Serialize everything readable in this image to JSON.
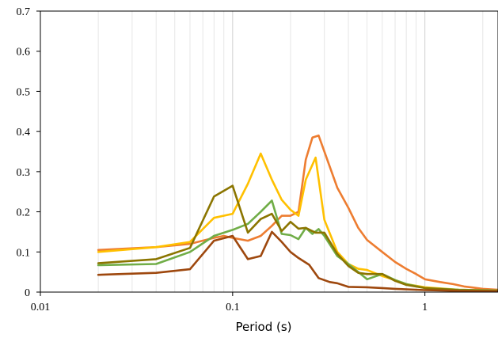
{
  "chart_data": {
    "type": "line",
    "title": "",
    "xlabel": "Period (s)",
    "ylabel": "",
    "x_scale": "log",
    "xlim": [
      0.01,
      2.4
    ],
    "ylim": [
      0,
      0.7
    ],
    "x_ticks": [
      0.01,
      0.1,
      1
    ],
    "x_tick_labels": [
      "0.01",
      "0.1",
      "1"
    ],
    "y_ticks": [
      0,
      0.1,
      0.2,
      0.3,
      0.4,
      0.5,
      0.6,
      0.7
    ],
    "y_tick_labels": [
      "0",
      "0.1",
      "0.2",
      "0.3",
      "0.4",
      "0.5",
      "0.6",
      "0.7"
    ],
    "grid": "vertical log grid",
    "legend": "none",
    "series": [
      {
        "color": "#ED7D31",
        "points": [
          [
            0.02,
            0.105
          ],
          [
            0.04,
            0.112
          ],
          [
            0.06,
            0.12
          ],
          [
            0.08,
            0.135
          ],
          [
            0.09,
            0.14
          ],
          [
            0.1,
            0.135
          ],
          [
            0.12,
            0.128
          ],
          [
            0.14,
            0.14
          ],
          [
            0.16,
            0.165
          ],
          [
            0.18,
            0.19
          ],
          [
            0.2,
            0.19
          ],
          [
            0.22,
            0.2
          ],
          [
            0.24,
            0.33
          ],
          [
            0.26,
            0.385
          ],
          [
            0.28,
            0.39
          ],
          [
            0.3,
            0.35
          ],
          [
            0.35,
            0.26
          ],
          [
            0.4,
            0.21
          ],
          [
            0.45,
            0.16
          ],
          [
            0.5,
            0.13
          ],
          [
            0.6,
            0.1
          ],
          [
            0.7,
            0.075
          ],
          [
            0.8,
            0.058
          ],
          [
            0.9,
            0.045
          ],
          [
            1.0,
            0.032
          ],
          [
            1.2,
            0.025
          ],
          [
            1.4,
            0.02
          ],
          [
            1.6,
            0.014
          ],
          [
            1.8,
            0.011
          ],
          [
            2.0,
            0.008
          ],
          [
            2.4,
            0.006
          ]
        ]
      },
      {
        "color": "#FFC000",
        "points": [
          [
            0.02,
            0.1
          ],
          [
            0.04,
            0.112
          ],
          [
            0.06,
            0.125
          ],
          [
            0.08,
            0.185
          ],
          [
            0.1,
            0.195
          ],
          [
            0.12,
            0.27
          ],
          [
            0.14,
            0.345
          ],
          [
            0.16,
            0.28
          ],
          [
            0.18,
            0.23
          ],
          [
            0.2,
            0.205
          ],
          [
            0.22,
            0.19
          ],
          [
            0.24,
            0.28
          ],
          [
            0.27,
            0.335
          ],
          [
            0.3,
            0.18
          ],
          [
            0.35,
            0.1
          ],
          [
            0.4,
            0.07
          ],
          [
            0.45,
            0.058
          ],
          [
            0.5,
            0.055
          ],
          [
            0.6,
            0.04
          ],
          [
            0.7,
            0.03
          ],
          [
            0.8,
            0.02
          ],
          [
            1.0,
            0.012
          ],
          [
            1.5,
            0.006
          ],
          [
            2.4,
            0.004
          ]
        ]
      },
      {
        "color": "#70AD47",
        "points": [
          [
            0.02,
            0.067
          ],
          [
            0.04,
            0.07
          ],
          [
            0.06,
            0.1
          ],
          [
            0.08,
            0.14
          ],
          [
            0.1,
            0.155
          ],
          [
            0.12,
            0.17
          ],
          [
            0.14,
            0.2
          ],
          [
            0.16,
            0.228
          ],
          [
            0.18,
            0.145
          ],
          [
            0.2,
            0.142
          ],
          [
            0.22,
            0.132
          ],
          [
            0.24,
            0.16
          ],
          [
            0.26,
            0.145
          ],
          [
            0.28,
            0.157
          ],
          [
            0.3,
            0.14
          ],
          [
            0.35,
            0.09
          ],
          [
            0.4,
            0.07
          ],
          [
            0.45,
            0.05
          ],
          [
            0.5,
            0.032
          ],
          [
            0.6,
            0.045
          ],
          [
            0.7,
            0.03
          ],
          [
            0.8,
            0.02
          ],
          [
            1.0,
            0.01
          ],
          [
            1.5,
            0.006
          ],
          [
            2.4,
            0.004
          ]
        ]
      },
      {
        "color": "#8B7500",
        "points": [
          [
            0.02,
            0.072
          ],
          [
            0.04,
            0.082
          ],
          [
            0.06,
            0.11
          ],
          [
            0.08,
            0.238
          ],
          [
            0.1,
            0.265
          ],
          [
            0.12,
            0.148
          ],
          [
            0.14,
            0.182
          ],
          [
            0.16,
            0.195
          ],
          [
            0.18,
            0.152
          ],
          [
            0.2,
            0.175
          ],
          [
            0.22,
            0.158
          ],
          [
            0.24,
            0.16
          ],
          [
            0.27,
            0.148
          ],
          [
            0.3,
            0.148
          ],
          [
            0.35,
            0.095
          ],
          [
            0.4,
            0.065
          ],
          [
            0.45,
            0.048
          ],
          [
            0.5,
            0.045
          ],
          [
            0.6,
            0.045
          ],
          [
            0.7,
            0.028
          ],
          [
            0.8,
            0.018
          ],
          [
            1.0,
            0.01
          ],
          [
            1.5,
            0.005
          ],
          [
            2.4,
            0.003
          ]
        ]
      },
      {
        "color": "#9E480E",
        "points": [
          [
            0.02,
            0.043
          ],
          [
            0.04,
            0.048
          ],
          [
            0.06,
            0.057
          ],
          [
            0.08,
            0.128
          ],
          [
            0.1,
            0.14
          ],
          [
            0.12,
            0.082
          ],
          [
            0.14,
            0.09
          ],
          [
            0.16,
            0.15
          ],
          [
            0.18,
            0.125
          ],
          [
            0.2,
            0.1
          ],
          [
            0.22,
            0.085
          ],
          [
            0.25,
            0.068
          ],
          [
            0.28,
            0.035
          ],
          [
            0.32,
            0.025
          ],
          [
            0.35,
            0.022
          ],
          [
            0.4,
            0.013
          ],
          [
            0.5,
            0.012
          ],
          [
            0.6,
            0.01
          ],
          [
            0.7,
            0.008
          ],
          [
            1.0,
            0.005
          ],
          [
            1.5,
            0.003
          ],
          [
            2.4,
            0.002
          ]
        ]
      }
    ]
  }
}
